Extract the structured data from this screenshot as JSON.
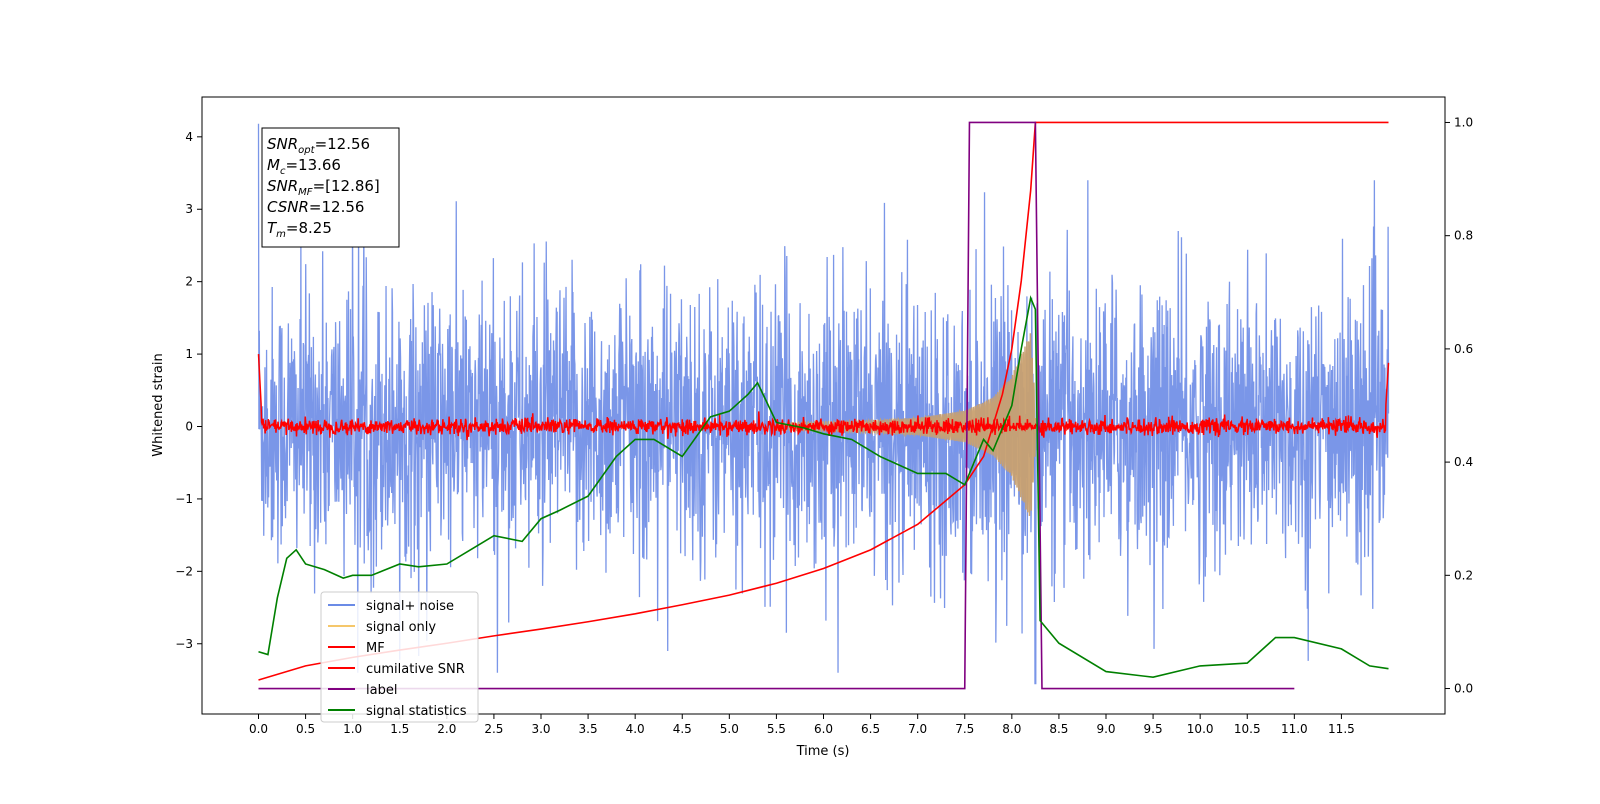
{
  "chart_data": {
    "type": "line",
    "xlabel": "Time (s)",
    "ylabel": "Whitened strain",
    "xlim": [
      -0.6,
      12.6
    ],
    "ylim": [
      -3.97,
      4.55
    ],
    "y2lim": [
      -0.045,
      1.045
    ],
    "xticks": [
      0.0,
      0.5,
      1.0,
      1.5,
      2.0,
      2.5,
      3.0,
      3.5,
      4.0,
      4.5,
      5.0,
      5.5,
      6.0,
      6.5,
      7.0,
      7.5,
      8.0,
      8.5,
      9.0,
      9.5,
      10.0,
      10.5,
      11.0,
      11.5
    ],
    "xtick_labels": [
      "0.0",
      "0.5",
      "1.0",
      "1.5",
      "2.0",
      "2.5",
      "3.0",
      "3.5",
      "4.0",
      "4.5",
      "5.0",
      "5.5",
      "6.0",
      "6.5",
      "7.0",
      "7.5",
      "8.0",
      "8.5",
      "9.0",
      "9.5",
      "10.0",
      "10.5",
      "11.0",
      "11.5"
    ],
    "yticks": [
      -3,
      -2,
      -1,
      0,
      1,
      2,
      3,
      4
    ],
    "ytick_labels": [
      "−3",
      "−2",
      "−1",
      "0",
      "1",
      "2",
      "3",
      "4"
    ],
    "y2ticks": [
      0.0,
      0.2,
      0.4,
      0.6,
      0.8,
      1.0
    ],
    "y2tick_labels": [
      "0.0",
      "0.2",
      "0.4",
      "0.6",
      "0.8",
      "1.0"
    ],
    "grid": false,
    "legend_position": "lower-left",
    "annotation": [
      {
        "name": "SNR",
        "sub": "opt",
        "rest": "=12.56"
      },
      {
        "name": "M",
        "sub": "c",
        "rest": "=13.66"
      },
      {
        "name": "SNR",
        "sub": "MF",
        "rest": "=[12.86]"
      },
      {
        "name": "CSNR",
        "sub": "",
        "rest": "=12.56"
      },
      {
        "name": "T",
        "sub": "m",
        "rest": "=8.25"
      }
    ],
    "series": [
      {
        "name": "signal+ noise",
        "color": "#6b8be6",
        "axis": "left",
        "kind": "noise",
        "t_range": [
          0.0,
          12.0
        ],
        "envelope_max": 3.4,
        "envelope_min": -3.4,
        "spike_max": 4.18,
        "spike_min": -3.55
      },
      {
        "name": "signal only",
        "color": "#f5c76b",
        "axis": "left",
        "kind": "chirp",
        "t_range": [
          5.5,
          8.25
        ],
        "amplitude_points": [
          [
            5.5,
            0.05
          ],
          [
            6.5,
            0.08
          ],
          [
            7.0,
            0.12
          ],
          [
            7.5,
            0.22
          ],
          [
            7.8,
            0.4
          ],
          [
            8.0,
            0.7
          ],
          [
            8.1,
            1.0
          ],
          [
            8.2,
            1.3
          ],
          [
            8.25,
            0.3
          ]
        ]
      },
      {
        "name": "MF",
        "color": "#ff0000",
        "axis": "left",
        "kind": "noise-band",
        "t_range": [
          0.0,
          12.0
        ],
        "amplitude": 0.1,
        "edge_values": [
          [
            0.0,
            1.0
          ],
          [
            0.03,
            0.25
          ],
          [
            11.97,
            0.25
          ],
          [
            12.0,
            0.88
          ]
        ]
      },
      {
        "name": "cumilative SNR",
        "color": "#ff0000",
        "axis": "right",
        "x": [
          0.0,
          0.5,
          1.0,
          1.5,
          2.0,
          2.5,
          3.0,
          3.5,
          4.0,
          4.5,
          5.0,
          5.5,
          6.0,
          6.5,
          7.0,
          7.5,
          7.7,
          7.9,
          8.0,
          8.1,
          8.2,
          8.25,
          12.0
        ],
        "values": [
          0.015,
          0.04,
          0.055,
          0.068,
          0.08,
          0.093,
          0.105,
          0.118,
          0.132,
          0.148,
          0.165,
          0.186,
          0.212,
          0.245,
          0.29,
          0.36,
          0.41,
          0.52,
          0.6,
          0.72,
          0.88,
          1.0,
          1.0
        ]
      },
      {
        "name": "label",
        "color": "#800080",
        "axis": "right",
        "x": [
          0.0,
          7.5,
          7.55,
          8.25,
          8.32,
          11.0
        ],
        "values": [
          0.0,
          0.0,
          1.0,
          1.0,
          0.0,
          0.0
        ]
      },
      {
        "name": "signal statistics",
        "color": "#008000",
        "axis": "right",
        "x": [
          0.0,
          0.1,
          0.2,
          0.3,
          0.4,
          0.5,
          0.7,
          0.9,
          1.0,
          1.2,
          1.5,
          1.7,
          2.0,
          2.3,
          2.5,
          2.8,
          3.0,
          3.2,
          3.5,
          3.8,
          4.0,
          4.2,
          4.5,
          4.8,
          5.0,
          5.2,
          5.3,
          5.5,
          5.8,
          6.0,
          6.3,
          6.6,
          7.0,
          7.3,
          7.5,
          7.7,
          7.8,
          8.0,
          8.1,
          8.2,
          8.25,
          8.3,
          8.5,
          9.0,
          9.5,
          10.0,
          10.5,
          10.8,
          11.0,
          11.5,
          11.8,
          12.0
        ],
        "values": [
          0.065,
          0.06,
          0.16,
          0.23,
          0.245,
          0.22,
          0.21,
          0.195,
          0.2,
          0.2,
          0.22,
          0.215,
          0.22,
          0.25,
          0.27,
          0.26,
          0.3,
          0.315,
          0.34,
          0.41,
          0.44,
          0.44,
          0.41,
          0.48,
          0.49,
          0.52,
          0.54,
          0.47,
          0.46,
          0.45,
          0.44,
          0.41,
          0.38,
          0.38,
          0.36,
          0.44,
          0.42,
          0.5,
          0.6,
          0.69,
          0.67,
          0.12,
          0.08,
          0.03,
          0.02,
          0.04,
          0.045,
          0.09,
          0.09,
          0.07,
          0.04,
          0.035
        ]
      }
    ]
  }
}
